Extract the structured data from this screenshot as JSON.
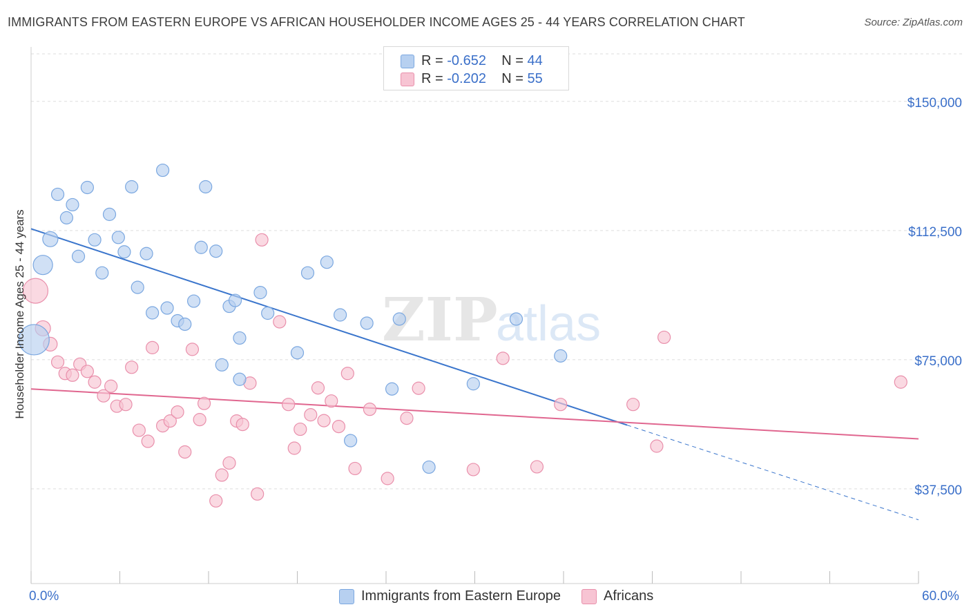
{
  "title": "IMMIGRANTS FROM EASTERN EUROPE VS AFRICAN HOUSEHOLDER INCOME AGES 25 - 44 YEARS CORRELATION CHART",
  "source": "Source: ZipAtlas.com",
  "legend": {
    "rows": [
      {
        "r_label": "R = ",
        "r_value": "-0.652",
        "n_label": "N = ",
        "n_value": "44"
      },
      {
        "r_label": "R = ",
        "r_value": "-0.202",
        "n_label": "N = ",
        "n_value": "55"
      }
    ]
  },
  "colors": {
    "blue_fill": "#b7d0f0",
    "blue_stroke": "#7aa7e0",
    "blue_line": "#3a75cc",
    "pink_fill": "#f7c4d3",
    "pink_stroke": "#e98fab",
    "pink_line": "#e0668f",
    "axis_label": "#3a6fc9",
    "grid": "#dddddd"
  },
  "chart_data": {
    "type": "scatter",
    "xlabel": "",
    "ylabel": "Householder Income Ages 25 - 44 years",
    "xlim": [
      0,
      60
    ],
    "ylim": [
      10000,
      165000
    ],
    "x_tick_labels": [
      "0.0%",
      "60.0%"
    ],
    "y_ticks": [
      37500,
      75000,
      112500,
      150000
    ],
    "y_tick_labels": [
      "$37,500",
      "$75,000",
      "$112,500",
      "$150,000"
    ],
    "grid": true,
    "legend_position": "top-center",
    "watermark": "ZIPatlas",
    "series": [
      {
        "name": "Immigrants from Eastern Europe",
        "color": "#b7d0f0",
        "trend": {
          "x0": 0,
          "y0": 113000,
          "x1": 40.3,
          "y1": 56000,
          "dashed_to_x": 60,
          "dashed_to_y": 28500
        },
        "points": [
          {
            "x": 0.2,
            "y": 80800,
            "size": 22
          },
          {
            "x": 0.8,
            "y": 102500,
            "size": 14
          },
          {
            "x": 1.3,
            "y": 110000,
            "size": 11
          },
          {
            "x": 1.8,
            "y": 123000,
            "size": 9
          },
          {
            "x": 2.4,
            "y": 116200,
            "size": 9
          },
          {
            "x": 2.8,
            "y": 120000,
            "size": 9
          },
          {
            "x": 3.2,
            "y": 105000,
            "size": 9
          },
          {
            "x": 3.8,
            "y": 125000,
            "size": 9
          },
          {
            "x": 4.3,
            "y": 109800,
            "size": 9
          },
          {
            "x": 4.8,
            "y": 100200,
            "size": 9
          },
          {
            "x": 5.3,
            "y": 117200,
            "size": 9
          },
          {
            "x": 5.9,
            "y": 110500,
            "size": 9
          },
          {
            "x": 6.3,
            "y": 106300,
            "size": 9
          },
          {
            "x": 6.8,
            "y": 125200,
            "size": 9
          },
          {
            "x": 7.2,
            "y": 96000,
            "size": 9
          },
          {
            "x": 7.8,
            "y": 105800,
            "size": 9
          },
          {
            "x": 8.2,
            "y": 88600,
            "size": 9
          },
          {
            "x": 8.9,
            "y": 130000,
            "size": 9
          },
          {
            "x": 9.2,
            "y": 90000,
            "size": 9
          },
          {
            "x": 9.9,
            "y": 86300,
            "size": 9
          },
          {
            "x": 10.4,
            "y": 85300,
            "size": 9
          },
          {
            "x": 11.0,
            "y": 92000,
            "size": 9
          },
          {
            "x": 11.5,
            "y": 107600,
            "size": 9
          },
          {
            "x": 11.8,
            "y": 125200,
            "size": 9
          },
          {
            "x": 12.5,
            "y": 106500,
            "size": 9
          },
          {
            "x": 12.9,
            "y": 73500,
            "size": 9
          },
          {
            "x": 13.4,
            "y": 90500,
            "size": 9
          },
          {
            "x": 13.8,
            "y": 92200,
            "size": 9
          },
          {
            "x": 14.1,
            "y": 81300,
            "size": 9
          },
          {
            "x": 14.1,
            "y": 69300,
            "size": 9
          },
          {
            "x": 15.5,
            "y": 94500,
            "size": 9
          },
          {
            "x": 16.0,
            "y": 88500,
            "size": 9
          },
          {
            "x": 18.0,
            "y": 77000,
            "size": 9
          },
          {
            "x": 18.7,
            "y": 100200,
            "size": 9
          },
          {
            "x": 20.0,
            "y": 103300,
            "size": 9
          },
          {
            "x": 20.9,
            "y": 88000,
            "size": 9
          },
          {
            "x": 21.6,
            "y": 51500,
            "size": 9
          },
          {
            "x": 22.7,
            "y": 85600,
            "size": 9
          },
          {
            "x": 24.4,
            "y": 66500,
            "size": 9
          },
          {
            "x": 24.9,
            "y": 86800,
            "size": 9
          },
          {
            "x": 26.9,
            "y": 43800,
            "size": 9
          },
          {
            "x": 29.9,
            "y": 68000,
            "size": 9
          },
          {
            "x": 32.8,
            "y": 86800,
            "size": 9
          },
          {
            "x": 35.8,
            "y": 76100,
            "size": 9
          }
        ]
      },
      {
        "name": "Africans",
        "color": "#f7c4d3",
        "trend": {
          "x0": 0,
          "y0": 66500,
          "x1": 60,
          "y1": 52000
        },
        "points": [
          {
            "x": 0.3,
            "y": 95000,
            "size": 18
          },
          {
            "x": 0.8,
            "y": 84100,
            "size": 11
          },
          {
            "x": 1.3,
            "y": 79500,
            "size": 10
          },
          {
            "x": 1.8,
            "y": 74300,
            "size": 9
          },
          {
            "x": 2.3,
            "y": 71000,
            "size": 9
          },
          {
            "x": 2.8,
            "y": 70500,
            "size": 9
          },
          {
            "x": 3.3,
            "y": 73700,
            "size": 9
          },
          {
            "x": 3.8,
            "y": 71600,
            "size": 9
          },
          {
            "x": 4.3,
            "y": 68500,
            "size": 9
          },
          {
            "x": 4.9,
            "y": 64500,
            "size": 9
          },
          {
            "x": 5.4,
            "y": 67300,
            "size": 9
          },
          {
            "x": 5.8,
            "y": 61500,
            "size": 9
          },
          {
            "x": 6.4,
            "y": 62000,
            "size": 9
          },
          {
            "x": 6.8,
            "y": 72800,
            "size": 9
          },
          {
            "x": 7.3,
            "y": 54500,
            "size": 9
          },
          {
            "x": 7.9,
            "y": 51300,
            "size": 9
          },
          {
            "x": 8.2,
            "y": 78500,
            "size": 9
          },
          {
            "x": 8.9,
            "y": 55800,
            "size": 9
          },
          {
            "x": 9.4,
            "y": 57200,
            "size": 9
          },
          {
            "x": 9.9,
            "y": 59800,
            "size": 9
          },
          {
            "x": 10.4,
            "y": 48200,
            "size": 9
          },
          {
            "x": 10.9,
            "y": 78000,
            "size": 9
          },
          {
            "x": 11.4,
            "y": 57600,
            "size": 9
          },
          {
            "x": 11.7,
            "y": 62300,
            "size": 9
          },
          {
            "x": 12.5,
            "y": 34000,
            "size": 9
          },
          {
            "x": 12.9,
            "y": 41500,
            "size": 9
          },
          {
            "x": 13.4,
            "y": 45000,
            "size": 9
          },
          {
            "x": 13.9,
            "y": 57200,
            "size": 9
          },
          {
            "x": 14.3,
            "y": 56200,
            "size": 9
          },
          {
            "x": 14.8,
            "y": 68200,
            "size": 9
          },
          {
            "x": 15.3,
            "y": 36000,
            "size": 9
          },
          {
            "x": 15.6,
            "y": 109800,
            "size": 9
          },
          {
            "x": 16.8,
            "y": 86000,
            "size": 9
          },
          {
            "x": 17.4,
            "y": 62000,
            "size": 9
          },
          {
            "x": 17.8,
            "y": 49300,
            "size": 9
          },
          {
            "x": 18.2,
            "y": 54800,
            "size": 9
          },
          {
            "x": 18.9,
            "y": 59000,
            "size": 9
          },
          {
            "x": 19.4,
            "y": 66800,
            "size": 9
          },
          {
            "x": 19.8,
            "y": 57300,
            "size": 9
          },
          {
            "x": 20.3,
            "y": 63000,
            "size": 9
          },
          {
            "x": 20.8,
            "y": 55600,
            "size": 9
          },
          {
            "x": 21.4,
            "y": 71000,
            "size": 9
          },
          {
            "x": 21.9,
            "y": 43400,
            "size": 9
          },
          {
            "x": 22.9,
            "y": 60600,
            "size": 9
          },
          {
            "x": 24.1,
            "y": 40500,
            "size": 9
          },
          {
            "x": 25.4,
            "y": 58000,
            "size": 9
          },
          {
            "x": 26.2,
            "y": 66700,
            "size": 9
          },
          {
            "x": 29.9,
            "y": 43100,
            "size": 9
          },
          {
            "x": 31.9,
            "y": 75400,
            "size": 9
          },
          {
            "x": 34.2,
            "y": 43900,
            "size": 9
          },
          {
            "x": 35.8,
            "y": 62000,
            "size": 9
          },
          {
            "x": 40.7,
            "y": 62000,
            "size": 9
          },
          {
            "x": 42.3,
            "y": 49900,
            "size": 9
          },
          {
            "x": 42.8,
            "y": 81500,
            "size": 9
          },
          {
            "x": 58.8,
            "y": 68500,
            "size": 9
          }
        ]
      }
    ]
  }
}
